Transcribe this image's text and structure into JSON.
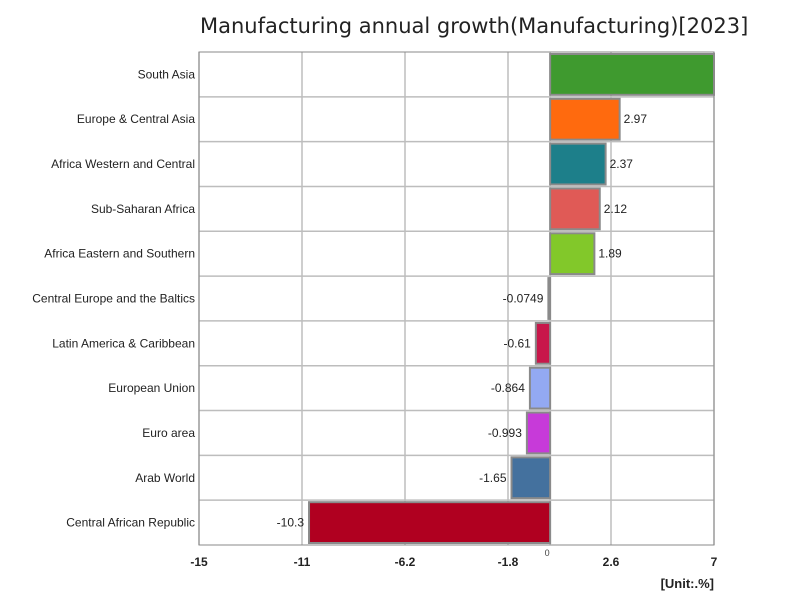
{
  "chart_data": {
    "type": "bar",
    "orientation": "horizontal",
    "title": "Manufacturing annual growth(Manufacturing)[2023]",
    "unit_label": "[Unit:.%]",
    "xlim": [
      -15,
      7
    ],
    "xticks": [
      "-15",
      "-11",
      "-6.2",
      "-1.8",
      "2.6",
      "7"
    ],
    "xtick_values": [
      -15,
      -10.6,
      -6.2,
      -1.8,
      2.6,
      7
    ],
    "zero_label": "0",
    "grid": true,
    "categories": [
      "South Asia",
      "Europe & Central Asia",
      "Africa Western and Central",
      "Sub-Saharan Africa",
      "Africa Eastern and Southern",
      "Central Europe and the Baltics",
      "Latin America & Caribbean",
      "European Union",
      "Euro area",
      "Arab World",
      "Central African Republic"
    ],
    "values": [
      7.0,
      2.97,
      2.37,
      2.12,
      1.89,
      -0.0749,
      -0.61,
      -0.864,
      -0.993,
      -1.65,
      -10.3
    ],
    "value_labels": [
      "",
      "2.97",
      "2.37",
      "2.12",
      "1.89",
      "-0.0749",
      "-0.61",
      "-0.864",
      "-0.993",
      "-1.65",
      "-10.3"
    ],
    "colors": [
      "#3f9a2f",
      "#ff6a0e",
      "#1d7f8a",
      "#e05a56",
      "#82c82a",
      "#cfcfcf",
      "#c8174a",
      "#93a9f2",
      "#c73ad9",
      "#44719e",
      "#b00020"
    ]
  }
}
